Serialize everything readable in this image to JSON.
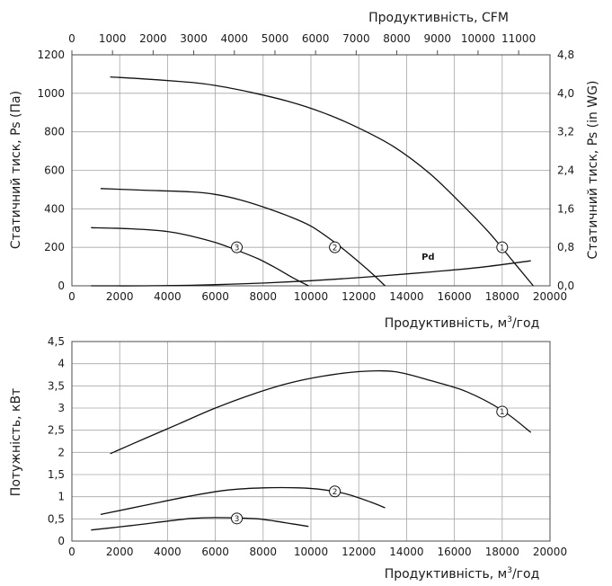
{
  "chart_data": [
    {
      "type": "line",
      "title": "",
      "xlabel": "Продуктивність, м³/год",
      "xlabel_main": "Продуктивність, м",
      "xlabel_sup": "3",
      "xlabel_tail": "/год",
      "ylabel": "Статичний тиск, Ps (Па)",
      "ylabel_right": "Статичний тиск, Ps (in WG)",
      "xlabel_top": "Продуктивність, CFM",
      "xlim": [
        0,
        20000
      ],
      "ylim": [
        0,
        1200
      ],
      "grid": true,
      "x_ticks": [
        "0",
        "2000",
        "4000",
        "6000",
        "8000",
        "10000",
        "12000",
        "14000",
        "16000",
        "18000",
        "20000"
      ],
      "y_ticks": [
        "0",
        "200",
        "400",
        "600",
        "800",
        "1000",
        "1200"
      ],
      "y_ticks_right": [
        "0,0",
        "0,8",
        "1,6",
        "2,4",
        "3,2",
        "4,0",
        "4,8"
      ],
      "x_ticks_top": [
        "0",
        "1000",
        "2000",
        "3000",
        "4000",
        "5000",
        "6000",
        "7000",
        "8000",
        "9000",
        "10000",
        "11000"
      ],
      "series": [
        {
          "name": "1",
          "x": [
            1600,
            3000,
            4500,
            5500,
            6500,
            7500,
            9000,
            10500,
            12000,
            13500,
            15000,
            16500,
            17500,
            18500,
            19300
          ],
          "y": [
            1085,
            1075,
            1062,
            1050,
            1030,
            1005,
            960,
            900,
            820,
            720,
            580,
            400,
            270,
            120,
            0
          ],
          "marker": "1",
          "marker_x": 18000,
          "marker_y": 200
        },
        {
          "name": "2",
          "x": [
            1200,
            3000,
            5000,
            6000,
            7000,
            8000,
            9000,
            10000,
            11000,
            11800,
            12500,
            13100
          ],
          "y": [
            505,
            497,
            488,
            475,
            448,
            410,
            365,
            310,
            225,
            145,
            70,
            0
          ],
          "marker": "2",
          "marker_x": 11000,
          "marker_y": 200
        },
        {
          "name": "3",
          "x": [
            800,
            2500,
            4000,
            5000,
            6000,
            7000,
            7800,
            8500,
            9200,
            9900
          ],
          "y": [
            302,
            296,
            282,
            258,
            225,
            180,
            140,
            95,
            45,
            0
          ],
          "marker": "3",
          "marker_x": 6900,
          "marker_y": 200
        },
        {
          "name": "Pd",
          "x": [
            800,
            3000,
            5000,
            7000,
            9000,
            11000,
            13000,
            15000,
            17000,
            19200
          ],
          "y": [
            0,
            0,
            3,
            10,
            20,
            34,
            52,
            72,
            95,
            130
          ],
          "label": "Pd",
          "label_x": 14900,
          "label_y": 116
        }
      ]
    },
    {
      "type": "line",
      "title": "",
      "xlabel": "Продуктивність, м³/год",
      "xlabel_main": "Продуктивність, м",
      "xlabel_sup": "3",
      "xlabel_tail": "/год",
      "ylabel": "Потужність, кВт",
      "xlim": [
        0,
        20000
      ],
      "ylim": [
        0,
        4.5
      ],
      "grid": true,
      "x_ticks": [
        "0",
        "2000",
        "4000",
        "6000",
        "8000",
        "10000",
        "12000",
        "14000",
        "16000",
        "18000",
        "20000"
      ],
      "y_ticks": [
        "0",
        "0,5",
        "1",
        "1,5",
        "2",
        "2,5",
        "3",
        "3,5",
        "4",
        "4,5"
      ],
      "series": [
        {
          "name": "1",
          "x": [
            1600,
            3000,
            4500,
            6000,
            7500,
            9000,
            10500,
            12000,
            13500,
            15000,
            16500,
            18000,
            19200
          ],
          "y": [
            1.97,
            2.3,
            2.65,
            3.0,
            3.3,
            3.55,
            3.72,
            3.82,
            3.82,
            3.62,
            3.37,
            2.95,
            2.45
          ],
          "marker": "1",
          "marker_x": 18000,
          "marker_y": 2.92
        },
        {
          "name": "2",
          "x": [
            1200,
            3000,
            5000,
            6500,
            8000,
            9500,
            10500,
            11500,
            12500,
            13100
          ],
          "y": [
            0.6,
            0.8,
            1.02,
            1.15,
            1.2,
            1.2,
            1.16,
            1.06,
            0.88,
            0.75
          ],
          "marker": "2",
          "marker_x": 11000,
          "marker_y": 1.12
        },
        {
          "name": "3",
          "x": [
            800,
            2500,
            4000,
            5000,
            6000,
            7000,
            7800,
            8500,
            9200,
            9900
          ],
          "y": [
            0.25,
            0.35,
            0.45,
            0.51,
            0.53,
            0.52,
            0.5,
            0.45,
            0.39,
            0.33
          ],
          "marker": "3",
          "marker_x": 6900,
          "marker_y": 0.51
        }
      ]
    }
  ]
}
